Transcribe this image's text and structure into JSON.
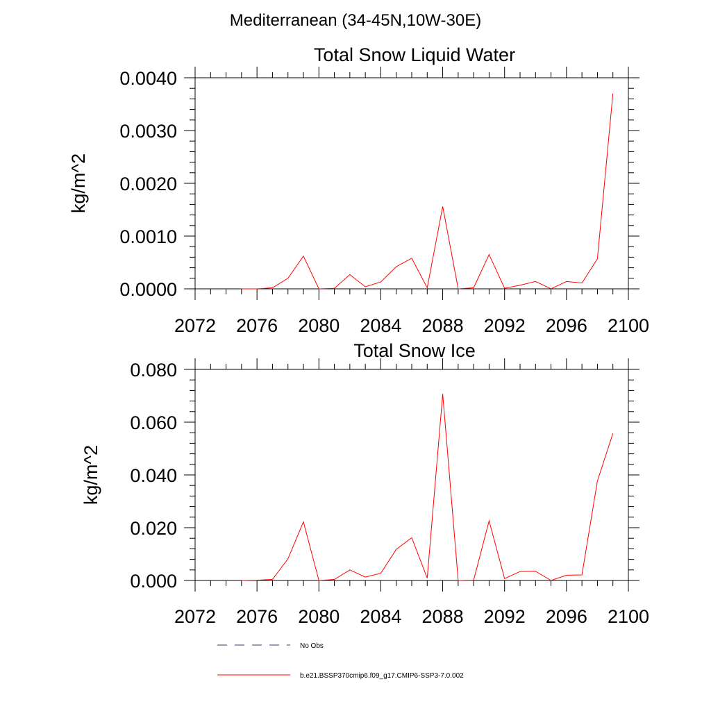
{
  "figure_title": "Mediterranean (34-45N,10W-30E)",
  "chart_data": [
    {
      "type": "line",
      "title": "Total Snow Liquid Water",
      "xlabel": "",
      "ylabel": "kg/m^2",
      "xlim": [
        2072,
        2100
      ],
      "ylim": [
        0,
        0.004
      ],
      "xticks": [
        2072,
        2076,
        2080,
        2084,
        2088,
        2092,
        2096,
        2100
      ],
      "xtick_labels": [
        "2072",
        "2076",
        "2080",
        "2084",
        "2088",
        "2092",
        "2096",
        "2100"
      ],
      "yticks": [
        0,
        0.001,
        0.002,
        0.003,
        0.004
      ],
      "ytick_labels": [
        "0.0000",
        "0.0010",
        "0.0020",
        "0.0030",
        "0.0040"
      ],
      "grid": false,
      "series": [
        {
          "name": "b.e21.BSSP370cmip6.f09_g17.CMIP6-SSP3-7.0.002",
          "color": "#ff0000",
          "x": [
            2075,
            2076,
            2077,
            2078,
            2079,
            2080,
            2081,
            2082,
            2083,
            2084,
            2085,
            2086,
            2087,
            2088,
            2089,
            2090,
            2091,
            2092,
            2093,
            2094,
            2095,
            2096,
            2097,
            2098,
            2099
          ],
          "values": [
            0.0,
            0.0,
            2e-05,
            0.0002,
            0.00062,
            0.0,
            1e-05,
            0.00027,
            4e-05,
            0.00013,
            0.00042,
            0.00058,
            2e-05,
            0.00156,
            0.0,
            2e-05,
            0.00065,
            1e-05,
            7e-05,
            0.00014,
            0.0,
            0.00014,
            0.00011,
            0.00057,
            0.0037
          ]
        }
      ]
    },
    {
      "type": "line",
      "title": "Total Snow Ice",
      "xlabel": "",
      "ylabel": "kg/m^2",
      "xlim": [
        2072,
        2100
      ],
      "ylim": [
        0,
        0.08
      ],
      "xticks": [
        2072,
        2076,
        2080,
        2084,
        2088,
        2092,
        2096,
        2100
      ],
      "xtick_labels": [
        "2072",
        "2076",
        "2080",
        "2084",
        "2088",
        "2092",
        "2096",
        "2100"
      ],
      "yticks": [
        0,
        0.02,
        0.04,
        0.06,
        0.08
      ],
      "ytick_labels": [
        "0.000",
        "0.020",
        "0.040",
        "0.060",
        "0.080"
      ],
      "grid": false,
      "series": [
        {
          "name": "b.e21.BSSP370cmip6.f09_g17.CMIP6-SSP3-7.0.002",
          "color": "#ff0000",
          "x": [
            2075,
            2076,
            2077,
            2078,
            2079,
            2080,
            2081,
            2082,
            2083,
            2084,
            2085,
            2086,
            2087,
            2088,
            2089,
            2090,
            2091,
            2092,
            2093,
            2094,
            2095,
            2096,
            2097,
            2098,
            2099
          ],
          "values": [
            0.0,
            0.0001,
            0.0004,
            0.0082,
            0.0222,
            0.0,
            0.0004,
            0.004,
            0.0013,
            0.0027,
            0.0118,
            0.0162,
            0.0009,
            0.0707,
            0.0,
            0.0001,
            0.0226,
            0.0007,
            0.0034,
            0.0035,
            0.0,
            0.002,
            0.0021,
            0.0377,
            0.0557
          ]
        }
      ]
    }
  ],
  "legend": {
    "placement": "bottom",
    "items": [
      {
        "label": "No Obs",
        "style": "dashed",
        "color": "#3a3a6a"
      },
      {
        "label": "b.e21.BSSP370cmip6.f09_g17.CMIP6-SSP3-7.0.002",
        "style": "solid",
        "color": "#ff0000"
      }
    ]
  }
}
